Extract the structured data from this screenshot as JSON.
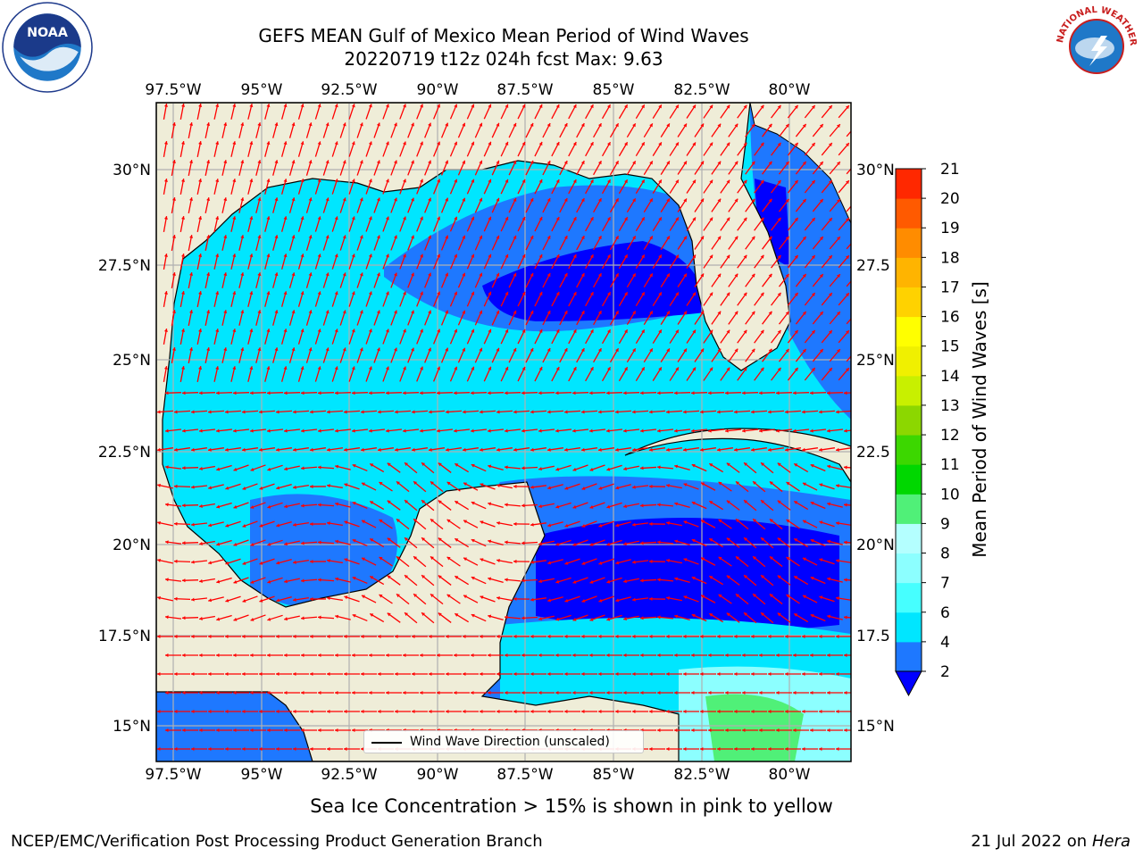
{
  "title": {
    "line1": "GEFS MEAN Gulf of Mexico Mean Period of Wind Waves",
    "line2": "20220719 t12z 024h fcst   Max: 9.63"
  },
  "logos": {
    "left": "noaa-logo",
    "right": "nws-logo"
  },
  "map": {
    "longitude_ticks": [
      "97.5°W",
      "95°W",
      "92.5°W",
      "90°W",
      "87.5°W",
      "85°W",
      "82.5°W",
      "80°W"
    ],
    "latitude_ticks": [
      "30°N",
      "27.5°N",
      "25°N",
      "22.5°N",
      "20°N",
      "17.5°N",
      "15°N"
    ],
    "latitude_ticks_right": [
      "30°N",
      "27.5",
      "25°N",
      "22.5",
      "20°N",
      "17.5",
      "15°N"
    ],
    "lon_range": [
      -98,
      -78.25
    ],
    "lat_range": [
      14,
      31.8
    ],
    "arrow_color": "#ff0000",
    "land_color": "#efedd8",
    "legend_label": "Wind Wave Direction (unscaled)"
  },
  "colorbar": {
    "label": "Mean Period of Wind Waves [s]",
    "ticks": [
      "2",
      "4",
      "6",
      "7",
      "8",
      "9",
      "10",
      "11",
      "12",
      "13",
      "14",
      "15",
      "16",
      "17",
      "18",
      "19",
      "20",
      "21"
    ],
    "colors": [
      "#1e78ff",
      "#00e6ff",
      "#46ffff",
      "#8cffff",
      "#b4ffff",
      "#50f078",
      "#00d700",
      "#3cd700",
      "#8cd700",
      "#c8f000",
      "#f0f000",
      "#ffff00",
      "#ffd200",
      "#ffb400",
      "#ff8c00",
      "#ff5a00",
      "#ff2800",
      "#ff0000"
    ],
    "underflow_color": "#0000ff"
  },
  "footer": {
    "sea_ice_note": "Sea Ice Concentration > 15% is shown in pink to yellow",
    "credit": "NCEP/EMC/Verification Post Processing Product Generation Branch",
    "date": "21 Jul 2022 on",
    "machine": "Hera"
  }
}
